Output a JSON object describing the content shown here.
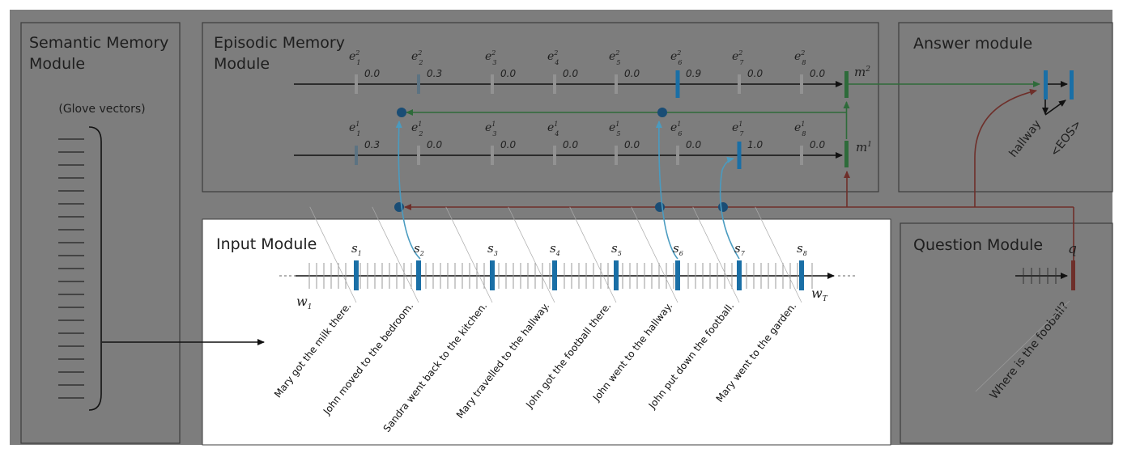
{
  "modules": {
    "semantic": {
      "title_line1": "Semantic Memory",
      "title_line2": "Module",
      "glove": "(Glove vectors)"
    },
    "episodic": {
      "title_line1": "Episodic Memory",
      "title_line2": "Module"
    },
    "answer": {
      "title": "Answer module",
      "outputs": [
        "hallway",
        "<EOS>"
      ]
    },
    "question": {
      "title": "Question Module",
      "q_label": "q",
      "question_text": "Where is the fooball?"
    },
    "input": {
      "title": "Input Module",
      "w1": "w",
      "w1_sub": "1",
      "wT": "w",
      "wT_sub": "T"
    }
  },
  "episodes": {
    "pass2": {
      "memory_label": "m",
      "memory_sup": "2",
      "gates": [
        {
          "sub": "1",
          "value": "0.0"
        },
        {
          "sub": "2",
          "value": "0.3"
        },
        {
          "sub": "3",
          "value": "0.0"
        },
        {
          "sub": "4",
          "value": "0.0"
        },
        {
          "sub": "5",
          "value": "0.0"
        },
        {
          "sub": "6",
          "value": "0.9"
        },
        {
          "sub": "7",
          "value": "0.0"
        },
        {
          "sub": "8",
          "value": "0.0"
        }
      ]
    },
    "pass1": {
      "memory_label": "m",
      "memory_sup": "1",
      "gates": [
        {
          "sub": "1",
          "value": "0.3"
        },
        {
          "sub": "2",
          "value": "0.0"
        },
        {
          "sub": "3",
          "value": "0.0"
        },
        {
          "sub": "4",
          "value": "0.0"
        },
        {
          "sub": "5",
          "value": "0.0"
        },
        {
          "sub": "6",
          "value": "0.0"
        },
        {
          "sub": "7",
          "value": "1.0"
        },
        {
          "sub": "8",
          "value": "0.0"
        }
      ]
    }
  },
  "sentences": [
    {
      "label": "s",
      "sub": "1",
      "text": "Mary got the milk there."
    },
    {
      "label": "s",
      "sub": "2",
      "text": "John moved to the bedroom."
    },
    {
      "label": "s",
      "sub": "3",
      "text": "Sandra went back to the kitchen."
    },
    {
      "label": "s",
      "sub": "4",
      "text": "Mary travelled to the hallway."
    },
    {
      "label": "s",
      "sub": "5",
      "text": "John got the football there."
    },
    {
      "label": "s",
      "sub": "6",
      "text": "John went to the hallway."
    },
    {
      "label": "s",
      "sub": "7",
      "text": "John put down the football."
    },
    {
      "label": "s",
      "sub": "8",
      "text": "Mary went to the garden."
    }
  ],
  "colors": {
    "panel": "#7d7d7d",
    "input_bg": "#ffffff",
    "blue": "#1a6fa6",
    "green": "#2e6b3a",
    "red": "#6e2f2a",
    "teal": "#4a9bc0"
  }
}
